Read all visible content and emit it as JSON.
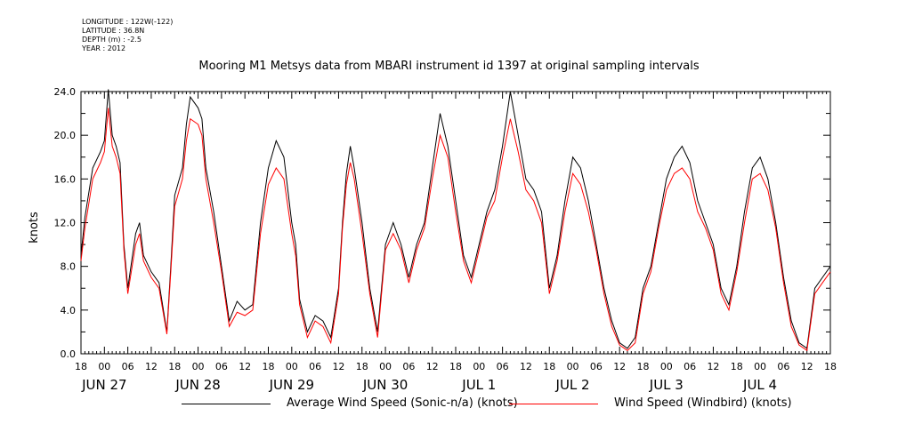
{
  "meta": {
    "longitude": "LONGITUDE : 122W(-122)",
    "latitude": "LATITUDE : 36.8N",
    "depth": "DEPTH (m) : -2.5",
    "year": "YEAR : 2012"
  },
  "chart_data": {
    "type": "line",
    "title": "Mooring M1 Metsys data from MBARI instrument id 1397 at original sampling intervals",
    "xlabel": "",
    "ylabel": "knots",
    "ylim": [
      0,
      24
    ],
    "y_ticks": [
      "0.0",
      "4.0",
      "8.0",
      "12.0",
      "16.0",
      "20.0",
      "24.0"
    ],
    "x_unit": "hours since 2012-06-26 18:00",
    "xlim": [
      0,
      192
    ],
    "hour_ticks": [
      "18",
      "00",
      "06",
      "12",
      "18",
      "00",
      "06",
      "12",
      "18",
      "00",
      "06",
      "12",
      "18",
      "00",
      "06",
      "12",
      "18",
      "00",
      "06",
      "12",
      "18",
      "00",
      "06",
      "12",
      "18",
      "00",
      "06",
      "12",
      "18",
      "00",
      "06",
      "12",
      "18"
    ],
    "day_labels": [
      "JUN 27",
      "JUN 28",
      "JUN 29",
      "JUN 30",
      "JUL  1",
      "JUL  2",
      "JUL  3",
      "JUL  4"
    ],
    "grid": false,
    "legend_position": "bottom",
    "series": [
      {
        "name": "Average Wind Speed (Sonic-n/a) (knots)",
        "color": "#000000",
        "x": [
          0,
          1,
          3,
          5,
          6,
          7,
          8,
          9,
          10,
          11,
          12,
          14,
          15,
          16,
          18,
          20,
          22,
          23,
          24,
          26,
          27,
          28,
          30,
          31,
          32,
          34,
          36,
          38,
          40,
          42,
          44,
          46,
          48,
          50,
          52,
          54,
          55,
          56,
          58,
          60,
          62,
          64,
          66,
          67,
          68,
          69,
          70,
          72,
          74,
          76,
          78,
          80,
          82,
          84,
          86,
          88,
          90,
          92,
          94,
          96,
          98,
          100,
          102,
          104,
          106,
          108,
          110,
          112,
          114,
          116,
          118,
          120,
          122,
          124,
          126,
          128,
          130,
          132,
          134,
          136,
          138,
          140,
          142,
          144,
          146,
          148,
          150,
          152,
          154,
          156,
          158,
          160,
          162,
          164,
          166,
          168,
          170,
          172,
          174,
          176,
          178,
          180,
          182,
          184,
          186,
          188,
          190,
          192
        ],
        "y": [
          9.0,
          12.5,
          17.0,
          18.5,
          19.5,
          24.2,
          20.0,
          19.0,
          17.5,
          10.0,
          6.0,
          11.0,
          12.0,
          9.0,
          7.5,
          6.5,
          2.0,
          8.0,
          14.5,
          17.0,
          21.0,
          23.5,
          22.5,
          21.5,
          17.0,
          13.0,
          8.0,
          3.0,
          4.8,
          4.0,
          4.5,
          12.0,
          17.0,
          19.5,
          18.0,
          12.0,
          10.0,
          5.0,
          2.0,
          3.5,
          3.0,
          1.5,
          6.0,
          12.0,
          16.5,
          19.0,
          17.0,
          12.0,
          6.0,
          2.0,
          10.0,
          12.0,
          10.0,
          7.0,
          10.0,
          12.0,
          17.0,
          22.0,
          19.0,
          14.0,
          9.0,
          7.0,
          10.0,
          13.0,
          15.0,
          19.0,
          24.0,
          20.0,
          16.0,
          15.0,
          13.0,
          6.0,
          9.0,
          14.0,
          18.0,
          17.0,
          14.0,
          10.0,
          6.0,
          3.0,
          1.0,
          0.5,
          1.5,
          6.0,
          8.0,
          12.0,
          16.0,
          18.0,
          19.0,
          17.5,
          14.0,
          12.0,
          10.0,
          6.0,
          4.5,
          8.0,
          13.0,
          17.0,
          18.0,
          16.0,
          12.0,
          7.0,
          3.0,
          1.0,
          0.5,
          6.0,
          7.0,
          8.0
        ]
      },
      {
        "name": "Wind Speed (Windbird) (knots)",
        "color": "#ff0000",
        "x": [
          0,
          1,
          3,
          5,
          6,
          7,
          8,
          9,
          10,
          11,
          12,
          14,
          15,
          16,
          18,
          20,
          22,
          23,
          24,
          26,
          27,
          28,
          30,
          31,
          32,
          34,
          36,
          38,
          40,
          42,
          44,
          46,
          48,
          50,
          52,
          54,
          55,
          56,
          58,
          60,
          62,
          64,
          66,
          67,
          68,
          69,
          70,
          72,
          74,
          76,
          78,
          80,
          82,
          84,
          86,
          88,
          90,
          92,
          94,
          96,
          98,
          100,
          102,
          104,
          106,
          108,
          110,
          112,
          114,
          116,
          118,
          120,
          122,
          124,
          126,
          128,
          130,
          132,
          134,
          136,
          138,
          140,
          142,
          144,
          146,
          148,
          150,
          152,
          154,
          156,
          158,
          160,
          162,
          164,
          166,
          168,
          170,
          172,
          174,
          176,
          178,
          180,
          182,
          184,
          186,
          188,
          190,
          192
        ],
        "y": [
          8.5,
          11.5,
          16.0,
          17.5,
          18.5,
          22.5,
          19.0,
          18.0,
          16.5,
          9.5,
          5.5,
          10.0,
          11.0,
          8.5,
          7.0,
          6.0,
          1.8,
          7.5,
          13.5,
          16.0,
          19.5,
          21.5,
          21.0,
          20.0,
          16.0,
          12.0,
          7.5,
          2.5,
          3.8,
          3.5,
          4.0,
          11.0,
          15.5,
          17.0,
          16.0,
          11.0,
          9.0,
          4.5,
          1.5,
          3.0,
          2.5,
          1.0,
          5.5,
          11.5,
          15.5,
          17.5,
          16.0,
          11.0,
          5.5,
          1.5,
          9.5,
          11.0,
          9.5,
          6.5,
          9.5,
          11.5,
          16.0,
          20.0,
          18.0,
          13.0,
          8.5,
          6.5,
          9.5,
          12.5,
          14.0,
          18.0,
          21.5,
          18.5,
          15.0,
          14.0,
          12.0,
          5.5,
          8.5,
          13.0,
          16.5,
          15.5,
          13.0,
          9.5,
          5.5,
          2.5,
          0.8,
          0.3,
          1.0,
          5.5,
          7.5,
          11.5,
          15.0,
          16.5,
          17.0,
          16.0,
          13.0,
          11.5,
          9.5,
          5.5,
          4.0,
          7.5,
          12.0,
          16.0,
          16.5,
          15.0,
          11.5,
          6.5,
          2.5,
          0.8,
          0.3,
          5.5,
          6.5,
          7.5
        ]
      }
    ]
  }
}
